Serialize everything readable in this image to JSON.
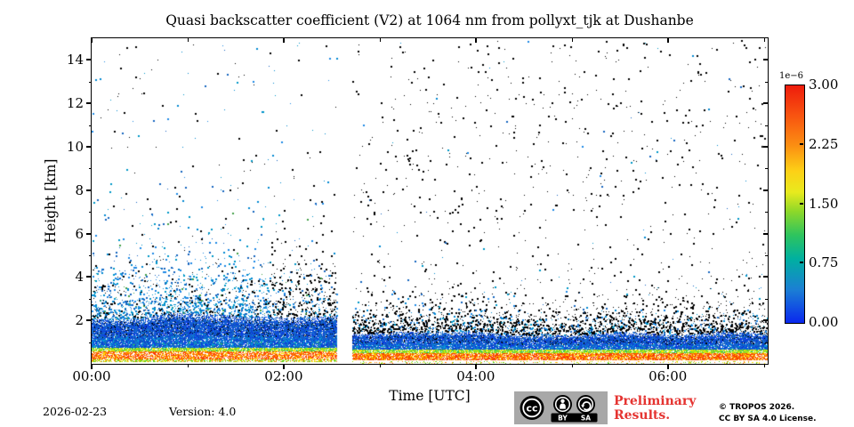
{
  "chart_data": {
    "type": "heatmap",
    "title": "Quasi backscatter coefficient (V2) at 1064 nm from pollyxt_tjk at Dushanbe",
    "xlabel": "Time [UTC]",
    "ylabel": "Height [km]",
    "x_range_hours": [
      0,
      7.04
    ],
    "y_range_km": [
      0,
      15
    ],
    "x_major_ticks": [
      {
        "hour": 0,
        "label": "00:00"
      },
      {
        "hour": 2,
        "label": "02:00"
      },
      {
        "hour": 4,
        "label": "04:00"
      },
      {
        "hour": 6,
        "label": "06:00"
      }
    ],
    "x_minor_hours": [
      1,
      3,
      5,
      7
    ],
    "y_major_ticks": [
      2,
      4,
      6,
      8,
      10,
      12,
      14
    ],
    "y_minor_ticks": [
      1,
      3,
      5,
      7,
      9,
      11,
      13
    ],
    "data_gap_hours": [
      2.55,
      2.71
    ],
    "grid": false,
    "legend_position": "right-colorbar",
    "colorbar": {
      "scale_label": "1e−6",
      "max": 3,
      "ticks": [
        {
          "value": 3,
          "label": "3.00"
        },
        {
          "value": 2.25,
          "label": "2.25"
        },
        {
          "value": 1.5,
          "label": "1.50"
        },
        {
          "value": 0.75,
          "label": "0.75"
        },
        {
          "value": 0,
          "label": "0.00"
        }
      ],
      "stops": [
        {
          "pos": 0,
          "color": "#0a28ee"
        },
        {
          "pos": 0.14,
          "color": "#1b7fd4"
        },
        {
          "pos": 0.27,
          "color": "#00b0a0"
        },
        {
          "pos": 0.37,
          "color": "#2ec45e"
        },
        {
          "pos": 0.47,
          "color": "#8ed829"
        },
        {
          "pos": 0.55,
          "color": "#e8ea1e"
        },
        {
          "pos": 0.64,
          "color": "#fdd016"
        },
        {
          "pos": 0.75,
          "color": "#fb8d12"
        },
        {
          "pos": 0.87,
          "color": "#f85510"
        },
        {
          "pos": 1,
          "color": "#ee1c0c"
        }
      ]
    },
    "render": {
      "seed": 1337,
      "black": "#000000",
      "cyan": "#00a8d8",
      "blue_palette": [
        "#0a34e8",
        "#1059dd",
        "#0d47c0",
        "#1976d2",
        "#1565c0"
      ],
      "scatter_blue": [
        "#1565c0",
        "#1e88e5",
        "#0097c7",
        "#0288d1"
      ],
      "green_palette": [
        "#7ddd22",
        "#b5e51d",
        "#ffe600",
        "#2bc25e"
      ],
      "red_palette": [
        "#f3320a",
        "#ff7a00",
        "#ffd800",
        "#ff4800"
      ],
      "bottom_palette": [
        "#9fdd00",
        "#ffe000",
        "#55cc11",
        "#ff7a00"
      ],
      "left": {
        "blue_top": 2.2,
        "blue_bottom": 0.72,
        "green_zone": [
          0.72,
          0.58
        ],
        "red_zone": [
          0.58,
          0.22
        ],
        "red_density": 0.74,
        "bottom_line": [
          0.22,
          0.1
        ]
      },
      "right": {
        "blue_top": 1.42,
        "blue_bottom": 0.66,
        "green_zone": [
          0.66,
          0.48
        ],
        "red_zone": [
          0.48,
          0.15
        ],
        "red_density": 0.85,
        "under_zone": [
          0.14,
          0.02
        ],
        "under_density": 0.15
      }
    }
  },
  "footer": {
    "date": "2026-02-23",
    "version": "Version: 4.0",
    "preliminary_line1": "Preliminary",
    "preliminary_line2": "Results.",
    "preliminary_color": "#e53431",
    "copyright_line1": "© TROPOS 2026.",
    "copyright_line2": "CC BY SA 4.0 License."
  },
  "badge": {
    "cc": "cc",
    "by": "BY",
    "sa": "SA"
  }
}
